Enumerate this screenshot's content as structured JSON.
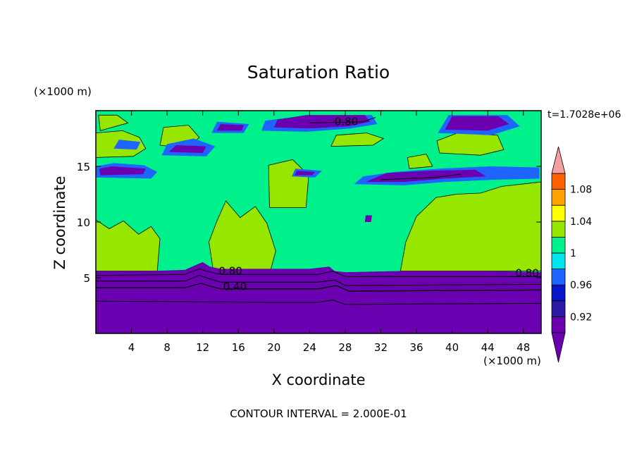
{
  "chart_data": {
    "type": "heatmap",
    "subtype": "filled-contour",
    "title": "Saturation Ratio",
    "xlabel": "X coordinate",
    "ylabel": "Z coordinate",
    "x_unit": "(×1000 m)",
    "y_unit": "(×1000 m)",
    "xlim": [
      0,
      50
    ],
    "ylim": [
      0,
      20
    ],
    "x_ticks": [
      4,
      8,
      12,
      16,
      20,
      24,
      28,
      32,
      36,
      40,
      44,
      48
    ],
    "y_ticks": [
      5,
      10,
      15
    ],
    "time_label": "t=1.7028e+06",
    "footer": "CONTOUR INTERVAL = 2.000E-01",
    "contour_labels": [
      "0.80",
      "0.80",
      "0.40",
      "0.80"
    ],
    "colorbar": {
      "levels": [
        0.9,
        0.92,
        0.94,
        0.96,
        0.98,
        1.0,
        1.02,
        1.04,
        1.06,
        1.08,
        1.1
      ],
      "tick_labels": [
        "0.92",
        "0.96",
        "1",
        "1.04",
        "1.08"
      ],
      "tick_values": [
        0.92,
        0.96,
        1.0,
        1.04,
        1.08
      ],
      "colors": [
        "#6a00b0",
        "#2b1aa8",
        "#0a14c8",
        "#1e64ff",
        "#00e6f0",
        "#00f08c",
        "#96e600",
        "#ffff00",
        "#ffa000",
        "#ff6000",
        "#ff1e1e"
      ],
      "over_color": "#f5a0a0",
      "under_color": "#6a00b0",
      "extend": "both"
    },
    "colors": {
      "deep_dry": "#6a00b0",
      "near_saturated": "#00f08c",
      "saturated": "#96e600",
      "blue_band": "#1e64ff",
      "cyan_band": "#00e6f0"
    }
  }
}
